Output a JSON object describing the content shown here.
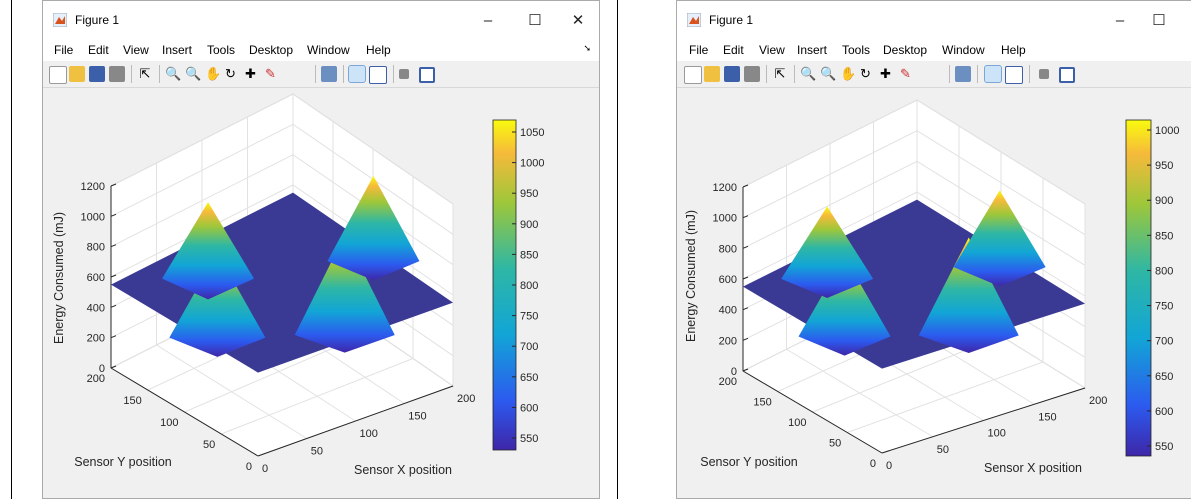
{
  "windows": [
    {
      "title": "Figure 1",
      "menu": [
        "File",
        "Edit",
        "View",
        "Insert",
        "Tools",
        "Desktop",
        "Window",
        "Help"
      ],
      "controls": [
        "–",
        "☐",
        "✕"
      ],
      "plot": {
        "zlabel": "Energy Consumed (mJ)",
        "xlabel": "Sensor X position",
        "ylabel": "Sensor Y position",
        "zticks": [
          "0",
          "200",
          "400",
          "600",
          "800",
          "1000",
          "1200"
        ],
        "yticks": [
          "0",
          "50",
          "100",
          "150",
          "200"
        ],
        "xticks": [
          "0",
          "50",
          "100",
          "150",
          "200"
        ],
        "colorbar_ticks": [
          "550",
          "600",
          "650",
          "700",
          "750",
          "800",
          "850",
          "900",
          "950",
          "1000",
          "1050"
        ]
      }
    },
    {
      "title": "Figure 1",
      "menu": [
        "File",
        "Edit",
        "View",
        "Insert",
        "Tools",
        "Desktop",
        "Window",
        "Help"
      ],
      "controls": [
        "–",
        "☐"
      ],
      "plot": {
        "zlabel": "Energy Consumed (mJ)",
        "xlabel": "Sensor X position",
        "ylabel": "Sensor Y position",
        "zticks": [
          "0",
          "200",
          "400",
          "600",
          "800",
          "1000",
          "1200"
        ],
        "yticks": [
          "0",
          "50",
          "100",
          "150",
          "200"
        ],
        "xticks": [
          "0",
          "50",
          "100",
          "150",
          "200"
        ],
        "colorbar_ticks": [
          "550",
          "600",
          "650",
          "700",
          "750",
          "800",
          "850",
          "900",
          "950",
          "1000"
        ]
      }
    }
  ],
  "colors": {
    "floor": "#3a3a94",
    "colormap_low": "#3e26a8",
    "colormap_high": "#f9fb0e"
  }
}
